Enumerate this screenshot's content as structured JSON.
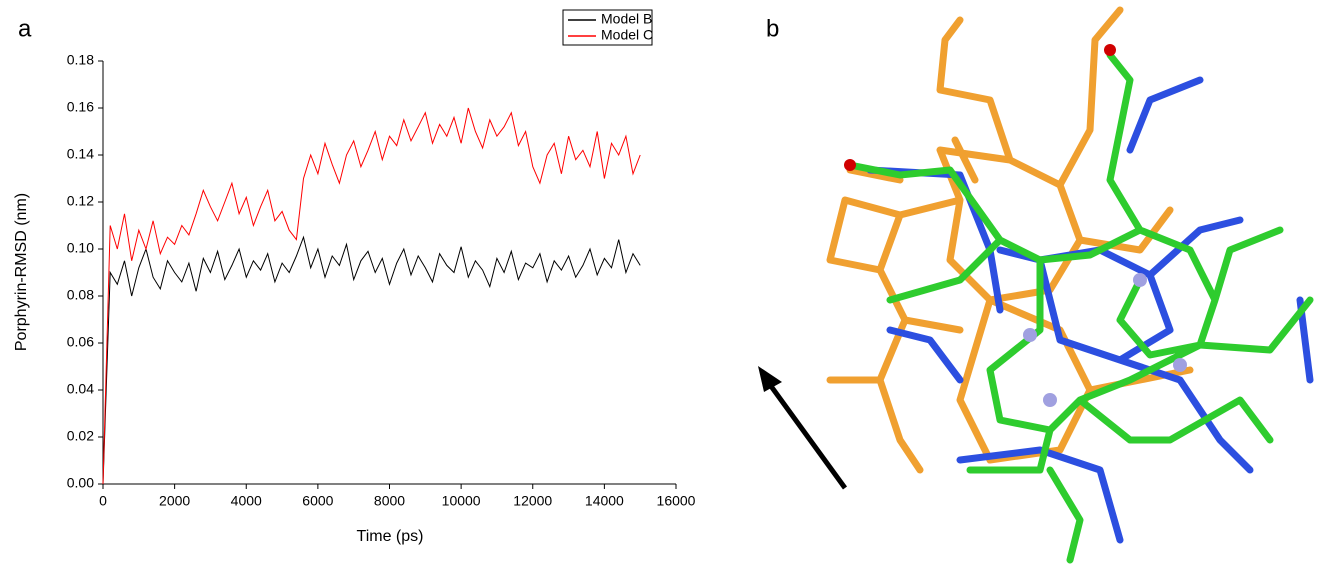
{
  "chart_data": {
    "type": "line",
    "panel_label": "a",
    "x_label": "Time (ps)",
    "y_label": "Porphyrin-RMSD (nm)",
    "x": [
      0,
      200,
      400,
      600,
      800,
      1000,
      1200,
      1400,
      1600,
      1800,
      2000,
      2200,
      2400,
      2600,
      2800,
      3000,
      3200,
      3400,
      3600,
      3800,
      4000,
      4200,
      4400,
      4600,
      4800,
      5000,
      5200,
      5400,
      5600,
      5800,
      6000,
      6200,
      6400,
      6600,
      6800,
      7000,
      7200,
      7400,
      7600,
      7800,
      8000,
      8200,
      8400,
      8600,
      8800,
      9000,
      9200,
      9400,
      9600,
      9800,
      10000,
      10200,
      10400,
      10600,
      10800,
      11000,
      11200,
      11400,
      11600,
      11800,
      12000,
      12200,
      12400,
      12600,
      12800,
      13000,
      13200,
      13400,
      13600,
      13800,
      14000,
      14200,
      14400,
      14600,
      14800,
      15000
    ],
    "series": [
      {
        "name": "Model B",
        "color": "#000000",
        "values": [
          0.0,
          0.09,
          0.085,
          0.095,
          0.08,
          0.092,
          0.1,
          0.088,
          0.083,
          0.095,
          0.09,
          0.086,
          0.094,
          0.082,
          0.096,
          0.09,
          0.099,
          0.087,
          0.093,
          0.1,
          0.088,
          0.095,
          0.091,
          0.098,
          0.086,
          0.094,
          0.09,
          0.097,
          0.105,
          0.092,
          0.1,
          0.088,
          0.097,
          0.093,
          0.102,
          0.087,
          0.095,
          0.099,
          0.09,
          0.096,
          0.085,
          0.094,
          0.1,
          0.089,
          0.097,
          0.092,
          0.086,
          0.098,
          0.093,
          0.09,
          0.101,
          0.088,
          0.095,
          0.091,
          0.084,
          0.096,
          0.09,
          0.099,
          0.087,
          0.094,
          0.092,
          0.098,
          0.086,
          0.095,
          0.091,
          0.097,
          0.088,
          0.093,
          0.1,
          0.089,
          0.096,
          0.092,
          0.104,
          0.09,
          0.098,
          0.093
        ]
      },
      {
        "name": "Model C",
        "color": "#ff0000",
        "values": [
          0.0,
          0.11,
          0.1,
          0.115,
          0.095,
          0.108,
          0.1,
          0.112,
          0.098,
          0.105,
          0.102,
          0.11,
          0.106,
          0.115,
          0.125,
          0.118,
          0.112,
          0.12,
          0.128,
          0.115,
          0.122,
          0.11,
          0.118,
          0.125,
          0.112,
          0.116,
          0.108,
          0.104,
          0.13,
          0.14,
          0.132,
          0.145,
          0.136,
          0.128,
          0.14,
          0.146,
          0.135,
          0.142,
          0.15,
          0.138,
          0.148,
          0.144,
          0.155,
          0.146,
          0.152,
          0.158,
          0.145,
          0.153,
          0.148,
          0.156,
          0.145,
          0.16,
          0.15,
          0.143,
          0.155,
          0.148,
          0.152,
          0.158,
          0.144,
          0.15,
          0.135,
          0.128,
          0.14,
          0.145,
          0.132,
          0.148,
          0.138,
          0.142,
          0.135,
          0.15,
          0.13,
          0.145,
          0.14,
          0.148,
          0.132,
          0.14
        ]
      }
    ],
    "xlim": [
      0,
      16000
    ],
    "xticks": [
      0,
      2000,
      4000,
      6000,
      8000,
      10000,
      12000,
      14000,
      16000
    ],
    "ylim": [
      0,
      0.18
    ],
    "yticks": [
      {
        "value": 0,
        "label": "0.00"
      },
      0.02,
      0.04,
      0.06,
      0.08,
      {
        "value": 0.1,
        "label": "0.10"
      },
      0.12,
      0.14,
      0.16,
      0.18
    ],
    "legend": "top-right"
  },
  "panel_b": {
    "label": "b"
  }
}
